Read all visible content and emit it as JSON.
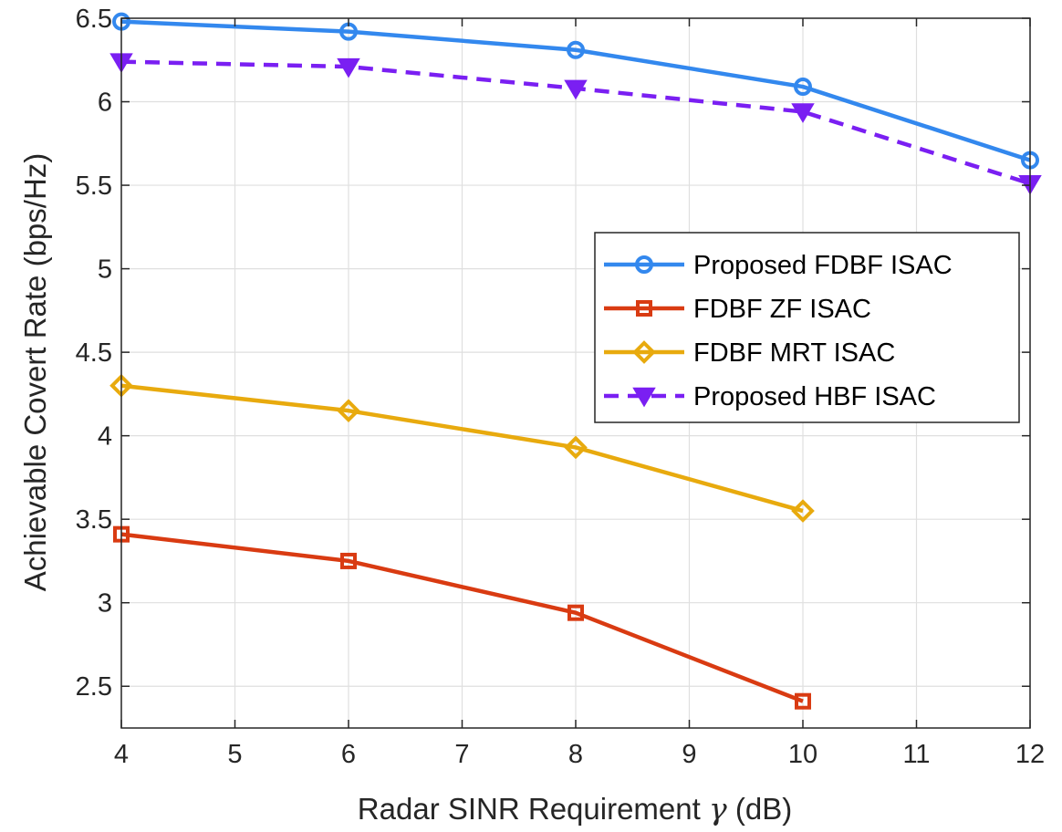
{
  "chart_data": {
    "type": "line",
    "title": "",
    "xlabel_prefix": "Radar SINR Requirement ",
    "xlabel_symbol": "γ",
    "xlabel_suffix": " (dB)",
    "ylabel": "Achievable Covert Rate (bps/Hz)",
    "xlim": [
      4,
      12
    ],
    "ylim": [
      2.25,
      6.5
    ],
    "xticks": [
      4,
      5,
      6,
      7,
      8,
      9,
      10,
      11,
      12
    ],
    "yticks": [
      2.5,
      3,
      3.5,
      4,
      4.5,
      5,
      5.5,
      6,
      6.5
    ],
    "grid": true,
    "legend_position": "center-right",
    "series": [
      {
        "name": "Proposed FDBF ISAC",
        "color": "#3388ee",
        "marker": "circle",
        "dashed": false,
        "x": [
          4,
          6,
          8,
          10,
          12
        ],
        "values": [
          6.48,
          6.42,
          6.31,
          6.09,
          5.65
        ]
      },
      {
        "name": "FDBF ZF ISAC",
        "color": "#d93b12",
        "marker": "square",
        "dashed": false,
        "x": [
          4,
          6,
          8,
          10
        ],
        "values": [
          3.41,
          3.25,
          2.94,
          2.41
        ]
      },
      {
        "name": "FDBF MRT ISAC",
        "color": "#e8aa0e",
        "marker": "diamond",
        "dashed": false,
        "x": [
          4,
          6,
          8,
          10
        ],
        "values": [
          4.3,
          4.15,
          3.93,
          3.55
        ]
      },
      {
        "name": "Proposed HBF ISAC",
        "color": "#7a1ff2",
        "marker": "triangle-down",
        "dashed": true,
        "x": [
          4,
          6,
          8,
          10,
          12
        ],
        "values": [
          6.24,
          6.21,
          6.08,
          5.94,
          5.51
        ]
      }
    ]
  }
}
